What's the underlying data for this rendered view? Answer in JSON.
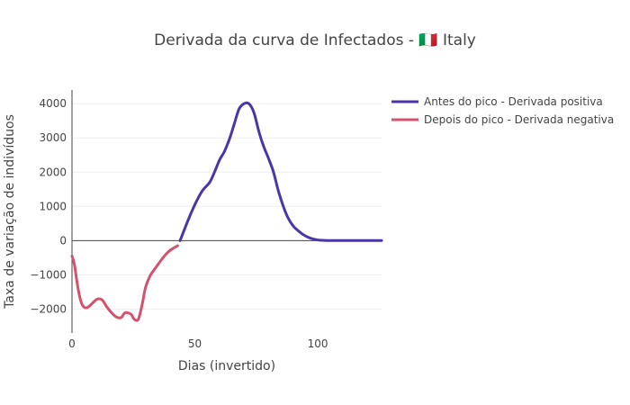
{
  "chart_data": {
    "type": "line",
    "title": "Derivada da curva de Infectados - 🇮🇹 Italy",
    "xlabel": "Dias (invertido)",
    "ylabel": "Taxa de variação de indivíduos",
    "xlim": [
      0,
      126
    ],
    "ylim": [
      -2700,
      4400
    ],
    "xticks": [
      0,
      50,
      100
    ],
    "yticks": [
      -2000,
      -1000,
      0,
      1000,
      2000,
      3000,
      4000
    ],
    "grid": true,
    "legend_position": "top-right",
    "series": [
      {
        "name": "Antes do pico - Derivada positiva",
        "color": "#4b35a8",
        "x": [
          44,
          47,
          50,
          53,
          56,
          58,
          60,
          62,
          64,
          66,
          68,
          70,
          72,
          74,
          76,
          78,
          80,
          82,
          84,
          86,
          88,
          90,
          92,
          94,
          96,
          98,
          100,
          102,
          104,
          106,
          108,
          110,
          115,
          120,
          126
        ],
        "y": [
          0,
          550,
          1050,
          1450,
          1700,
          2000,
          2350,
          2600,
          2950,
          3400,
          3850,
          4000,
          4000,
          3750,
          3200,
          2750,
          2400,
          2000,
          1450,
          1000,
          650,
          430,
          290,
          180,
          100,
          50,
          20,
          8,
          3,
          1,
          0,
          0,
          0,
          0,
          0
        ]
      },
      {
        "name": "Depois do pico - Derivada negativa",
        "color": "#d4526e",
        "x": [
          0,
          1,
          2,
          3,
          4,
          5,
          6,
          7,
          8,
          9,
          10,
          11,
          12,
          13,
          14,
          16,
          18,
          20,
          21,
          22,
          24,
          25,
          26,
          27,
          28,
          29,
          30,
          32,
          34,
          36,
          38,
          40,
          43
        ],
        "y": [
          -450,
          -700,
          -1200,
          -1600,
          -1850,
          -1950,
          -1960,
          -1920,
          -1850,
          -1780,
          -1720,
          -1700,
          -1720,
          -1800,
          -1920,
          -2100,
          -2230,
          -2250,
          -2150,
          -2100,
          -2150,
          -2270,
          -2330,
          -2300,
          -2050,
          -1700,
          -1350,
          -1000,
          -800,
          -600,
          -420,
          -280,
          -150
        ]
      }
    ]
  }
}
